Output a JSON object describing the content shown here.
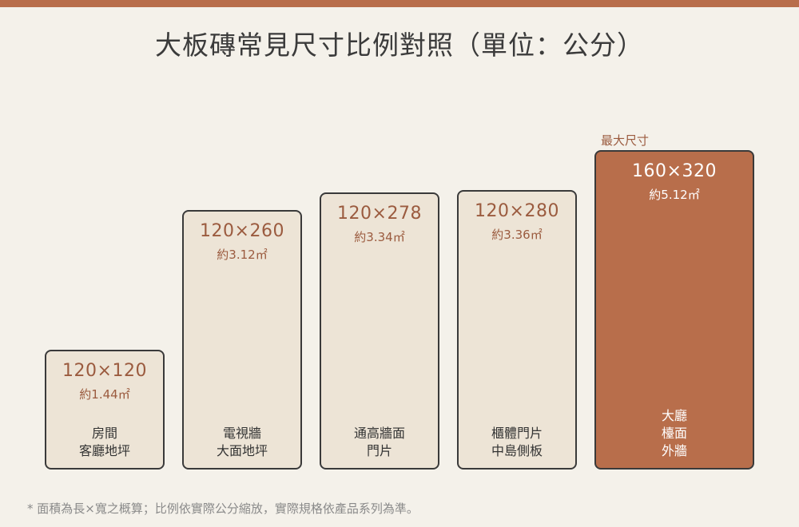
{
  "title": "大板磚常見尺寸比例對照（單位：公分）",
  "max_label": "最大尺寸",
  "footnote": "* 面積為長×寬之概算；比例依實際公分縮放，實際規格依產品系列為準。",
  "colors": {
    "accent": "#b86e4b",
    "tile_fill": "#ede4d6",
    "background": "#f4f1ea",
    "outline": "#3a3a3a"
  },
  "tiles": [
    {
      "width_cm": 120,
      "height_cm": 120,
      "dims": "120×120",
      "area": "約1.44㎡",
      "uses": [
        "房間",
        "客廳地坪"
      ],
      "highlight": false
    },
    {
      "width_cm": 120,
      "height_cm": 260,
      "dims": "120×260",
      "area": "約3.12㎡",
      "uses": [
        "電視牆",
        "大面地坪"
      ],
      "highlight": false
    },
    {
      "width_cm": 120,
      "height_cm": 278,
      "dims": "120×278",
      "area": "約3.34㎡",
      "uses": [
        "通高牆面",
        "門片"
      ],
      "highlight": false
    },
    {
      "width_cm": 120,
      "height_cm": 280,
      "dims": "120×280",
      "area": "約3.36㎡",
      "uses": [
        "櫃體門片",
        "中島側板"
      ],
      "highlight": false
    },
    {
      "width_cm": 160,
      "height_cm": 320,
      "dims": "160×320",
      "area": "約5.12㎡",
      "uses": [
        "大廳",
        "檯面",
        "外牆"
      ],
      "highlight": true
    }
  ]
}
